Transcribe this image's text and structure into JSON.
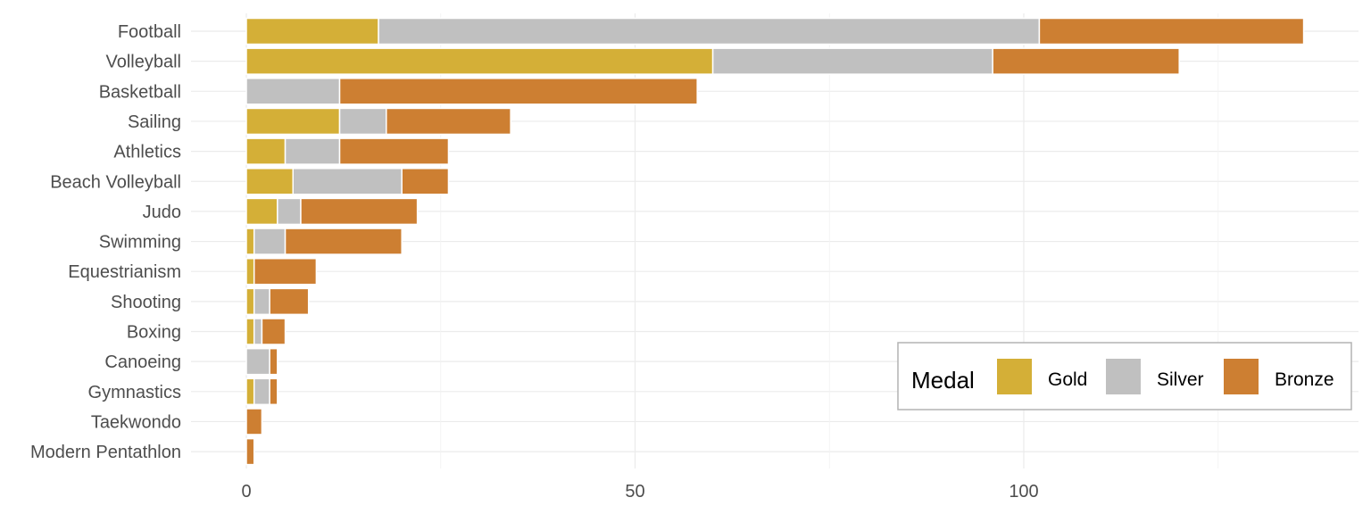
{
  "chart_data": {
    "type": "bar",
    "orientation": "horizontal",
    "stacked": true,
    "title": "",
    "xlabel": "",
    "ylabel": "",
    "xlim": [
      0,
      140
    ],
    "x_ticks": [
      0,
      50,
      100
    ],
    "grid": true,
    "legend_position": "bottom-right",
    "legend_title": "Medal",
    "categories": [
      "Football",
      "Volleyball",
      "Basketball",
      "Sailing",
      "Athletics",
      "Beach Volleyball",
      "Judo",
      "Swimming",
      "Equestrianism",
      "Shooting",
      "Boxing",
      "Canoeing",
      "Gymnastics",
      "Taekwondo",
      "Modern Pentathlon"
    ],
    "series": [
      {
        "name": "Gold",
        "color": "#D4AF37",
        "values": [
          17,
          60,
          0,
          12,
          5,
          6,
          4,
          1,
          1,
          1,
          1,
          0,
          1,
          0,
          0
        ]
      },
      {
        "name": "Silver",
        "color": "#C0C0C0",
        "values": [
          85,
          36,
          12,
          6,
          7,
          14,
          3,
          4,
          0,
          2,
          1,
          3,
          2,
          0,
          0
        ]
      },
      {
        "name": "Bronze",
        "color": "#CD7F32",
        "values": [
          34,
          24,
          46,
          16,
          14,
          6,
          15,
          15,
          8,
          5,
          3,
          1,
          1,
          2,
          1
        ]
      }
    ]
  }
}
